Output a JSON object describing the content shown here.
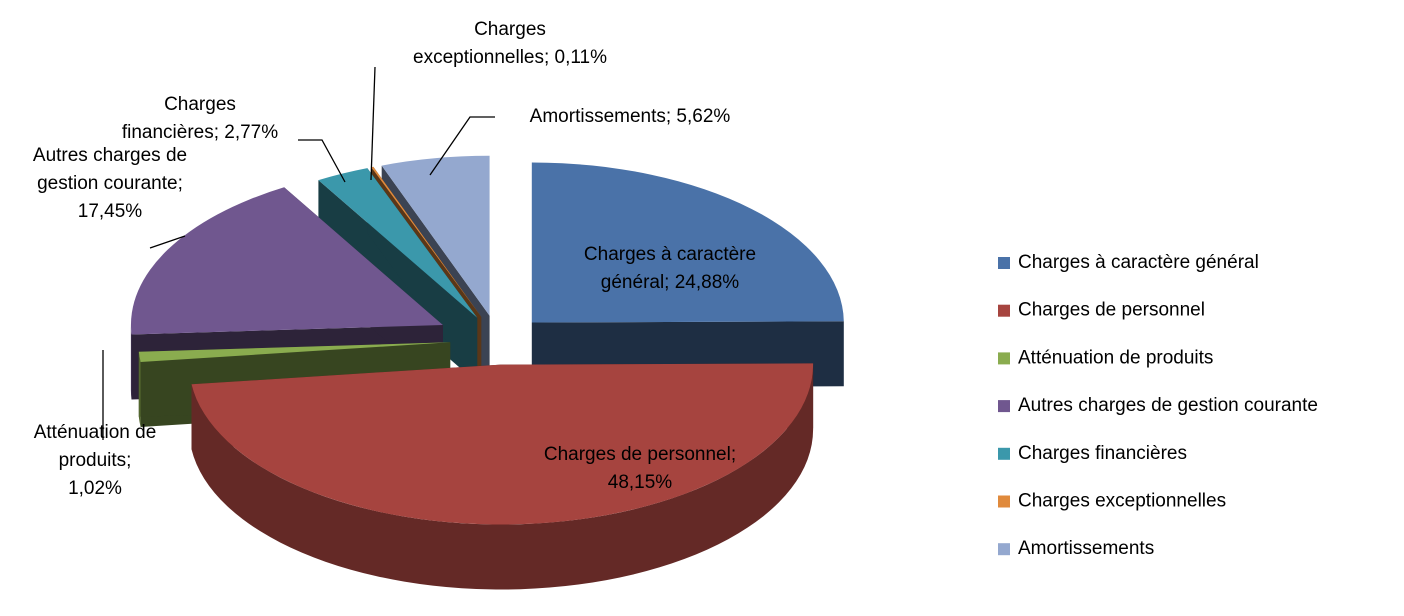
{
  "chart_data": {
    "type": "pie3d",
    "categories": [
      "Charges à caractère général",
      "Charges de personnel",
      "Atténuation de produits",
      "Autres charges de gestion courante",
      "Charges financières",
      "Charges exceptionnelles",
      "Amortissements"
    ],
    "values": [
      24.88,
      48.15,
      1.02,
      17.45,
      2.77,
      0.11,
      5.62
    ],
    "value_labels": [
      "Charges à caractère général; 24,88%",
      "Charges de personnel; 48,15%",
      "Atténuation de produits; 1,02%",
      "Autres charges de gestion courante; 17,45%",
      "Charges financières; 2,77%",
      "Charges exceptionnelles; 0,11%",
      "Amortissements; 5,62%"
    ],
    "colors": [
      "#4a72a8",
      "#a6443f",
      "#8aac4f",
      "#70578f",
      "#3b98ab",
      "#e08a3c",
      "#94a8cf"
    ],
    "legend": "right"
  }
}
